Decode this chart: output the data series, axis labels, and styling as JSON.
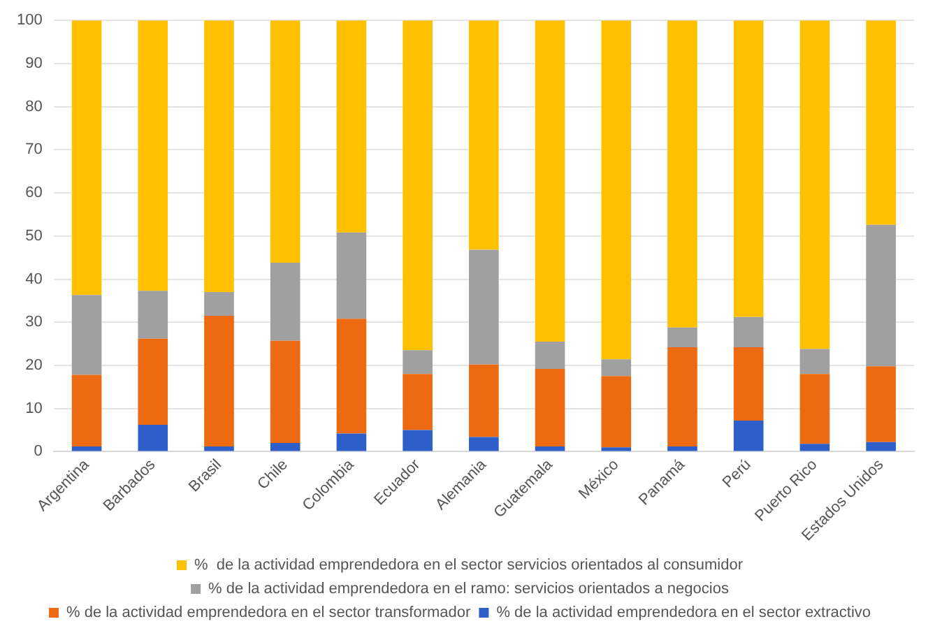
{
  "chart_data": {
    "type": "bar",
    "stacked": true,
    "categories": [
      "Argentina",
      "Barbados",
      "Brasil",
      "Chile",
      "Colombia",
      "Ecuador",
      "Alemania",
      "Guatemala",
      "México",
      "Panamá",
      "Perú",
      "Puerto Rico",
      "Estados Unidos"
    ],
    "series": [
      {
        "name": "% de la actividad emprendedora en el sector extractivo",
        "color": "#2e5fc9",
        "values": [
          1.2,
          6.2,
          1.2,
          2.0,
          4.2,
          5.0,
          3.4,
          1.2,
          1.0,
          1.2,
          7.2,
          1.8,
          2.2
        ]
      },
      {
        "name": "% de la actividad emprendedora en el sector transformador",
        "color": "#ed6a12",
        "values": [
          16.6,
          20.0,
          30.3,
          23.7,
          26.6,
          13.0,
          16.8,
          18.0,
          16.5,
          23.0,
          17.0,
          16.2,
          17.6
        ]
      },
      {
        "name": "% de la actividad emprendedora en el ramo: servicios orientados a negocios",
        "color": "#a0a0a0",
        "values": [
          18.5,
          11.1,
          5.5,
          18.1,
          20.0,
          5.5,
          26.6,
          6.3,
          3.9,
          4.6,
          7.0,
          5.8,
          32.8
        ]
      },
      {
        "name": "%  de la actividad emprendedora en el sector servicios orientados al consumidor",
        "color": "#ffc000",
        "values": [
          63.7,
          62.7,
          63.0,
          56.2,
          49.2,
          76.5,
          53.2,
          74.5,
          78.6,
          71.2,
          68.8,
          76.2,
          47.4
        ]
      }
    ],
    "ylim": [
      0,
      100
    ],
    "yticks": [
      0,
      10,
      20,
      30,
      40,
      50,
      60,
      70,
      80,
      90,
      100
    ],
    "grid": "y",
    "legend": "bottom"
  }
}
